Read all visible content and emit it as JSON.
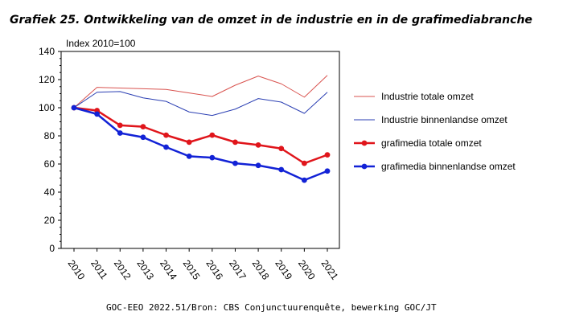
{
  "title": "Grafiek 25. Ontwikkeling van de omzet in de industrie en in de grafimediabranche",
  "source": "GOC-EEO 2022.51/Bron: CBS Conjunctuurenquête, bewerking GOC/JT",
  "chart_data": {
    "type": "line",
    "title": "Grafiek 25. Ontwikkeling van de omzet in de industrie en in de grafimediabranche",
    "ylabel": "Index 2010=100",
    "xlabel": "",
    "ylim": [
      0,
      140
    ],
    "yticks": [
      0,
      20,
      40,
      60,
      80,
      100,
      120,
      140
    ],
    "categories": [
      "2010",
      "2011",
      "2012",
      "2013",
      "2014",
      "2015",
      "2016",
      "2017",
      "2018",
      "2019",
      "2020",
      "2021"
    ],
    "grid": false,
    "legend_position": "right",
    "series": [
      {
        "name": "Industrie totale omzet",
        "color": "#d9534f",
        "markers": false,
        "width": 1,
        "values": [
          100,
          114.5,
          114,
          113.5,
          113,
          110.5,
          108,
          116,
          122.5,
          117,
          107.5,
          123
        ]
      },
      {
        "name": "Industrie binnenlandse omzet",
        "color": "#2b3fb3",
        "markers": false,
        "width": 1,
        "values": [
          100,
          111,
          111.5,
          107,
          104.5,
          97,
          94.5,
          99,
          106.5,
          104,
          96,
          111
        ]
      },
      {
        "name": "grafimedia totale omzet",
        "color": "#e0151b",
        "markers": true,
        "width": 2.5,
        "values": [
          100,
          98,
          87.5,
          86.5,
          80.5,
          75.5,
          80.5,
          75.5,
          73.5,
          71,
          60.5,
          66.5
        ]
      },
      {
        "name": "grafimedia binnenlandse omzet",
        "color": "#1222d6",
        "markers": true,
        "width": 2.5,
        "values": [
          100,
          95.5,
          82,
          79,
          72,
          65.5,
          64.5,
          60.5,
          59,
          56,
          48.5,
          55
        ]
      }
    ]
  }
}
